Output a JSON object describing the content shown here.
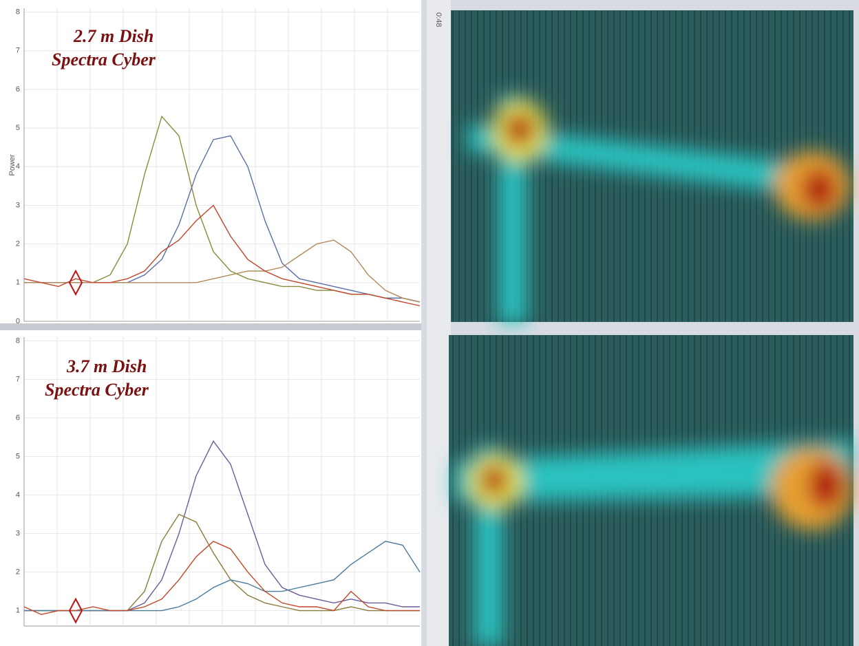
{
  "window": {
    "time_label": "0:48"
  },
  "chart_data": [
    {
      "type": "line",
      "annotations": [
        "2.7 m Dish",
        "Spectra Cyber"
      ],
      "y_label": "Power",
      "ylim": [
        0,
        8.1
      ],
      "yticks": [
        0,
        1,
        2,
        3,
        4,
        5,
        6,
        7,
        8
      ],
      "grid": true,
      "categories": [
        null,
        null,
        null,
        null,
        null,
        null,
        null,
        null,
        null,
        null,
        null,
        null,
        null,
        null,
        null,
        null,
        null,
        null,
        null,
        null,
        null,
        null,
        null,
        null
      ],
      "series": [
        {
          "color": "#8a8a3a",
          "values": [
            1,
            1,
            1,
            1,
            1,
            1.2,
            2,
            3.8,
            5.3,
            4.8,
            3,
            1.8,
            1.3,
            1.1,
            1,
            0.9,
            0.9,
            0.8,
            0.8,
            0.7,
            0.7,
            0.6,
            0.6,
            0.5
          ]
        },
        {
          "color": "#5a6fa8",
          "values": [
            1,
            1,
            1,
            1,
            1,
            1,
            1,
            1.2,
            1.6,
            2.5,
            3.8,
            4.7,
            4.8,
            4,
            2.6,
            1.5,
            1.1,
            1,
            0.9,
            0.8,
            0.7,
            0.6,
            0.6,
            0.5
          ]
        },
        {
          "color": "#b08a5a",
          "values": [
            1,
            1,
            1,
            1,
            1,
            1,
            1,
            1,
            1,
            1,
            1,
            1.1,
            1.2,
            1.3,
            1.3,
            1.4,
            1.7,
            2,
            2.1,
            1.8,
            1.2,
            0.8,
            0.6,
            0.5
          ]
        },
        {
          "color": "#c0472a",
          "values": [
            1.1,
            1,
            0.9,
            1.1,
            1,
            1,
            1.1,
            1.3,
            1.8,
            2.1,
            2.6,
            3,
            2.2,
            1.6,
            1.3,
            1.1,
            1,
            0.9,
            0.8,
            0.7,
            0.7,
            0.6,
            0.5,
            0.4
          ]
        }
      ]
    },
    {
      "type": "line",
      "annotations": [
        "3.7 m Dish",
        "Spectra Cyber"
      ],
      "ylim": [
        0.6,
        8.1
      ],
      "yticks": [
        1,
        2,
        3,
        4,
        5,
        6,
        7,
        8
      ],
      "grid": true,
      "categories": [
        null,
        null,
        null,
        null,
        null,
        null,
        null,
        null,
        null,
        null,
        null,
        null,
        null,
        null,
        null,
        null,
        null,
        null,
        null,
        null,
        null,
        null,
        null,
        null
      ],
      "series": [
        {
          "color": "#6a5a9a",
          "values": [
            1,
            1,
            1,
            1,
            1,
            1,
            1,
            1.2,
            1.8,
            3,
            4.5,
            5.4,
            4.8,
            3.5,
            2.2,
            1.6,
            1.4,
            1.3,
            1.2,
            1.3,
            1.2,
            1.2,
            1.1,
            1.1
          ]
        },
        {
          "color": "#8a7a3a",
          "values": [
            1,
            1,
            1,
            1,
            1,
            1,
            1,
            1.5,
            2.8,
            3.5,
            3.3,
            2.5,
            1.8,
            1.4,
            1.2,
            1.1,
            1,
            1,
            1,
            1.1,
            1,
            1,
            1,
            1
          ]
        },
        {
          "color": "#4a7a9a",
          "values": [
            1,
            1,
            1,
            1,
            1,
            1,
            1,
            1,
            1,
            1.1,
            1.3,
            1.6,
            1.8,
            1.7,
            1.5,
            1.5,
            1.6,
            1.7,
            1.8,
            2.2,
            2.5,
            2.8,
            2.7,
            2
          ]
        },
        {
          "color": "#c0472a",
          "values": [
            1.1,
            0.9,
            1,
            1,
            1.1,
            1,
            1,
            1.1,
            1.3,
            1.8,
            2.4,
            2.8,
            2.6,
            2,
            1.5,
            1.2,
            1.1,
            1.1,
            1,
            1.5,
            1.1,
            1,
            1,
            1
          ]
        }
      ]
    }
  ]
}
